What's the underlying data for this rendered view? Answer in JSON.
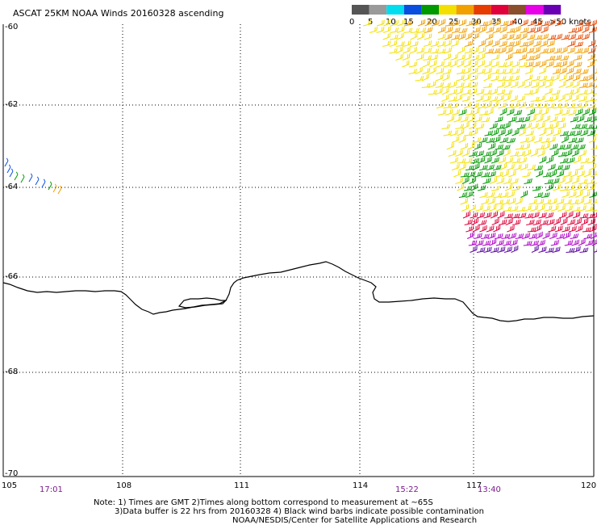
{
  "title": "ASCAT 25KM NOAA Winds 20160328 ascending",
  "legend": {
    "labels": [
      "0",
      "5",
      "10",
      "15",
      "20",
      "25",
      "30",
      "35",
      "40",
      "45",
      ">50 knots"
    ],
    "colors": [
      "#555555",
      "#9a9a9a",
      "#00ddee",
      "#0a4ee0",
      "#009a00",
      "#f4e000",
      "#f2a000",
      "#e63c00",
      "#e0003a",
      "#8a4f2a",
      "#e800e8",
      "#6a00b4"
    ]
  },
  "axes": {
    "lat_labels": [
      "-60",
      "-62",
      "-64",
      "-66",
      "-68",
      "-70"
    ],
    "lon_labels": [
      "105",
      "108",
      "111",
      "114",
      "117",
      "120"
    ]
  },
  "pass_times": [
    "17:01",
    "15:22",
    "13:40"
  ],
  "notes": [
    "Note: 1) Times are GMT 2)Times along bottom correspond to measurement at ~65S",
    "3)Data buffer is 22 hrs from 20160328 4) Black wind barbs indicate possible contamination",
    "NOAA/NESDIS/Center for Satellite Applications and Research"
  ],
  "colors": {
    "coastline": "#000000",
    "grid": "#000000",
    "time_label": "#7a1a8c"
  },
  "barb_bands": [
    {
      "name": "orange-red",
      "color": "#e84a00"
    },
    {
      "name": "orange",
      "color": "#f2a000"
    },
    {
      "name": "yellow",
      "color": "#f4e000"
    },
    {
      "name": "green",
      "color": "#009a00"
    },
    {
      "name": "red",
      "color": "#e0003a"
    },
    {
      "name": "magenta",
      "color": "#b000c8"
    },
    {
      "name": "purple",
      "color": "#5a0aa0"
    }
  ]
}
